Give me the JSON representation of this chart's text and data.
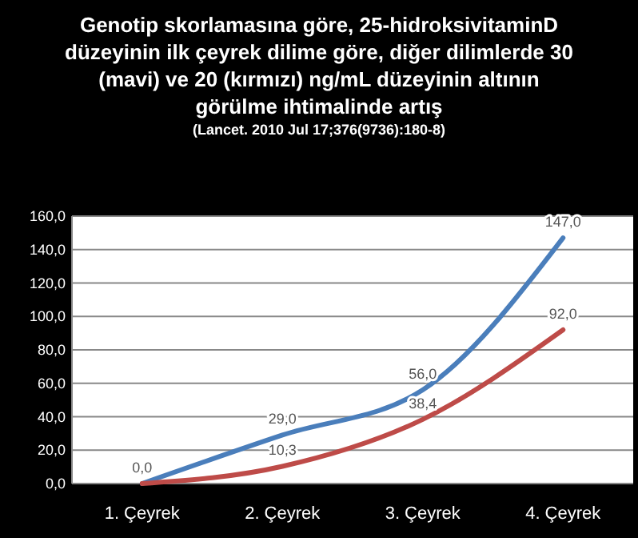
{
  "chart_data": {
    "type": "line",
    "title": "Genotip skorlamasına  göre, 25-hidroksivitaminD düzeyinin ilk çeyrek dilime göre, diğer dilimlerde 30 (mavi) ve 20 (kırmızı) ng/mL düzeyinin altının görülme ihtimalinde artış",
    "subtitle": "(Lancet. 2010 Jul 17;376(9736):180-8)",
    "categories": [
      "1. Çeyrek",
      "2. Çeyrek",
      "3. Çeyrek",
      "4. Çeyrek"
    ],
    "series": [
      {
        "color": "#4a7ebb",
        "values": [
          0,
          29,
          56,
          147
        ],
        "value_labels": [
          "0,0",
          "29,0",
          "56,0",
          "147,0"
        ]
      },
      {
        "color": "#be4b48",
        "values": [
          0,
          10.3,
          38.4,
          92
        ],
        "value_labels": [
          null,
          "10,3",
          "38,4",
          "92,0"
        ]
      }
    ],
    "ylim": [
      0,
      160
    ],
    "yticks": [
      {
        "value": 0,
        "label": "0,0"
      },
      {
        "value": 20,
        "label": "20,0"
      },
      {
        "value": 40,
        "label": "40,0"
      },
      {
        "value": 60,
        "label": "60,0"
      },
      {
        "value": 80,
        "label": "80,0"
      },
      {
        "value": 100,
        "label": "100,0"
      },
      {
        "value": 120,
        "label": "120,0"
      },
      {
        "value": 140,
        "label": "140,0"
      },
      {
        "value": 160,
        "label": "160,0"
      }
    ],
    "grid": "y",
    "marker": "none",
    "line_style": "solid"
  }
}
